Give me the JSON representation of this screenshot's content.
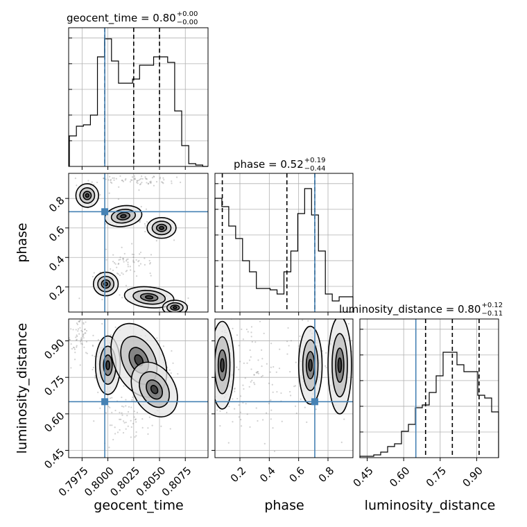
{
  "chart_data": {
    "type": "corner",
    "parameters": [
      "geocent_time",
      "phase",
      "luminosity_distance"
    ],
    "axis_labels": {
      "geocent_time": "geocent_time",
      "phase": "phase",
      "luminosity_distance": "luminosity_distance"
    },
    "ranges": {
      "geocent_time": [
        0.7962,
        0.8097
      ],
      "phase": [
        0.03,
        0.97
      ],
      "luminosity_distance": [
        0.42,
        0.99
      ]
    },
    "ticks": {
      "geocent_time": [
        "0.7975",
        "0.8000",
        "0.8025",
        "0.8050",
        "0.8075"
      ],
      "phase": [
        "0.2",
        "0.4",
        "0.6",
        "0.8"
      ],
      "luminosity_distance": [
        "0.45",
        "0.60",
        "0.75",
        "0.90"
      ]
    },
    "tick_values": {
      "geocent_time": [
        0.7975,
        0.8,
        0.8025,
        0.805,
        0.8075
      ],
      "phase": [
        0.2,
        0.4,
        0.6,
        0.8
      ],
      "luminosity_distance": [
        0.45,
        0.6,
        0.75,
        0.9
      ]
    },
    "truths": {
      "geocent_time": 0.7997,
      "phase": 0.71,
      "luminosity_distance": 0.65
    },
    "titles": [
      {
        "param": "geocent_time",
        "text": "geocent_time = 0.80",
        "sup": "+0.00",
        "sub": "−0.00"
      },
      {
        "param": "phase",
        "text": "phase = 0.52",
        "sup": "+0.19",
        "sub": "−0.44"
      },
      {
        "param": "luminosity_distance",
        "text": "luminosity_distance = 0.80",
        "sup": "+0.12",
        "sub": "−0.11"
      }
    ],
    "quantiles": {
      "geocent_time": [
        0.7997,
        0.8025,
        0.805
      ],
      "phase": [
        0.08,
        0.52,
        0.71
      ],
      "luminosity_distance": [
        0.69,
        0.8,
        0.91
      ]
    },
    "histograms": {
      "geocent_time": {
        "edges": [
          0.79627,
          0.79695,
          0.79763,
          0.79831,
          0.79899,
          0.79967,
          0.80035,
          0.80103,
          0.80171,
          0.80239,
          0.80307,
          0.80375,
          0.80443,
          0.80511,
          0.80579,
          0.80647,
          0.80715,
          0.80783,
          0.80851,
          0.80919,
          0.8097
        ],
        "counts": [
          0.22,
          0.29,
          0.3,
          0.37,
          0.79,
          0.92,
          0.76,
          0.6,
          0.6,
          0.63,
          0.73,
          0.73,
          0.79,
          0.79,
          0.75,
          0.4,
          0.15,
          0.02,
          0.01,
          0.0
        ]
      },
      "phase": {
        "edges": [
          0.03,
          0.077,
          0.124,
          0.171,
          0.218,
          0.265,
          0.312,
          0.359,
          0.406,
          0.453,
          0.5,
          0.547,
          0.594,
          0.641,
          0.688,
          0.735,
          0.782,
          0.829,
          0.876,
          0.923,
          0.97
        ],
        "counts": [
          0.82,
          0.76,
          0.62,
          0.53,
          0.37,
          0.29,
          0.17,
          0.17,
          0.16,
          0.13,
          0.29,
          0.44,
          0.71,
          0.89,
          0.7,
          0.44,
          0.13,
          0.08,
          0.11,
          0.11
        ]
      },
      "luminosity_distance": {
        "edges": [
          0.42,
          0.4485,
          0.477,
          0.5055,
          0.534,
          0.5625,
          0.591,
          0.6195,
          0.648,
          0.6765,
          0.705,
          0.7335,
          0.762,
          0.7905,
          0.819,
          0.8475,
          0.876,
          0.9045,
          0.933,
          0.9615,
          0.99
        ],
        "counts": [
          0.01,
          0.01,
          0.02,
          0.04,
          0.08,
          0.1,
          0.19,
          0.24,
          0.36,
          0.38,
          0.47,
          0.59,
          0.76,
          0.76,
          0.67,
          0.62,
          0.62,
          0.45,
          0.43,
          0.33
        ]
      }
    },
    "colors": {
      "truth": "#4682b4",
      "hist": "#000000",
      "grid": "#b0b0b0"
    }
  }
}
